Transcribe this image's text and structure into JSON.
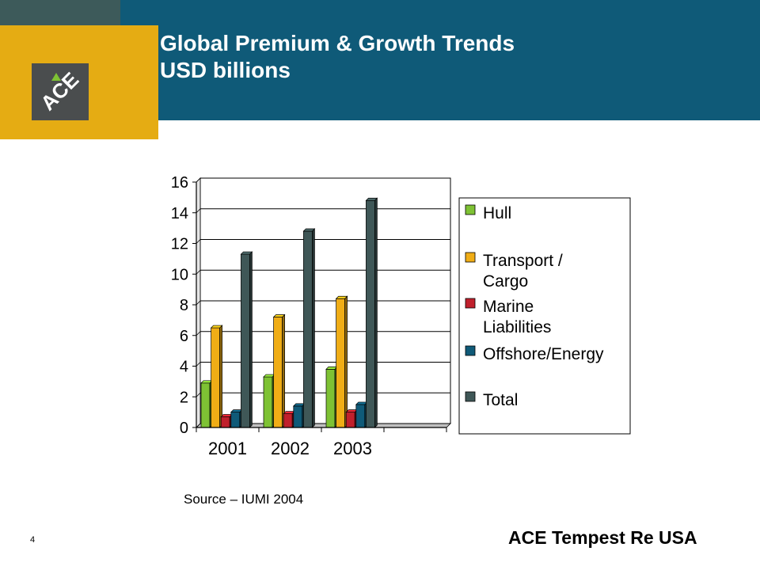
{
  "slide": {
    "title_line1": "Global Premium & Growth Trends",
    "title_line2": "USD billions",
    "source": "Source – IUMI 2004",
    "page_number": "4",
    "footer_brand": "ACE Tempest Re USA",
    "logo_text": "ACE"
  },
  "colors": {
    "header_blue": "#0f5a78",
    "header_gray": "#3d5a5a",
    "accent_gold": "#e5ac13",
    "logo_gray": "#4a4d4e"
  },
  "chart_data": {
    "type": "bar",
    "title": "",
    "xlabel": "",
    "ylabel": "",
    "categories": [
      "2001",
      "2002",
      "2003"
    ],
    "ylim": [
      0,
      16
    ],
    "yticks": [
      0,
      2,
      4,
      6,
      8,
      10,
      12,
      14,
      16
    ],
    "grid": true,
    "legend_position": "right",
    "series": [
      {
        "name": "Hull",
        "color": "#7ec234",
        "values": [
          2.9,
          3.3,
          3.8
        ]
      },
      {
        "name": "Transport / Cargo",
        "color": "#f0ad16",
        "values": [
          6.5,
          7.2,
          8.4
        ]
      },
      {
        "name": "Marine Liabilities",
        "color": "#c0202c",
        "values": [
          0.7,
          0.9,
          1.0
        ]
      },
      {
        "name": "Offshore/Energy",
        "color": "#0f5a78",
        "values": [
          1.0,
          1.4,
          1.5
        ]
      },
      {
        "name": "Total",
        "color": "#3f5757",
        "values": [
          11.3,
          12.8,
          14.8
        ]
      }
    ]
  }
}
